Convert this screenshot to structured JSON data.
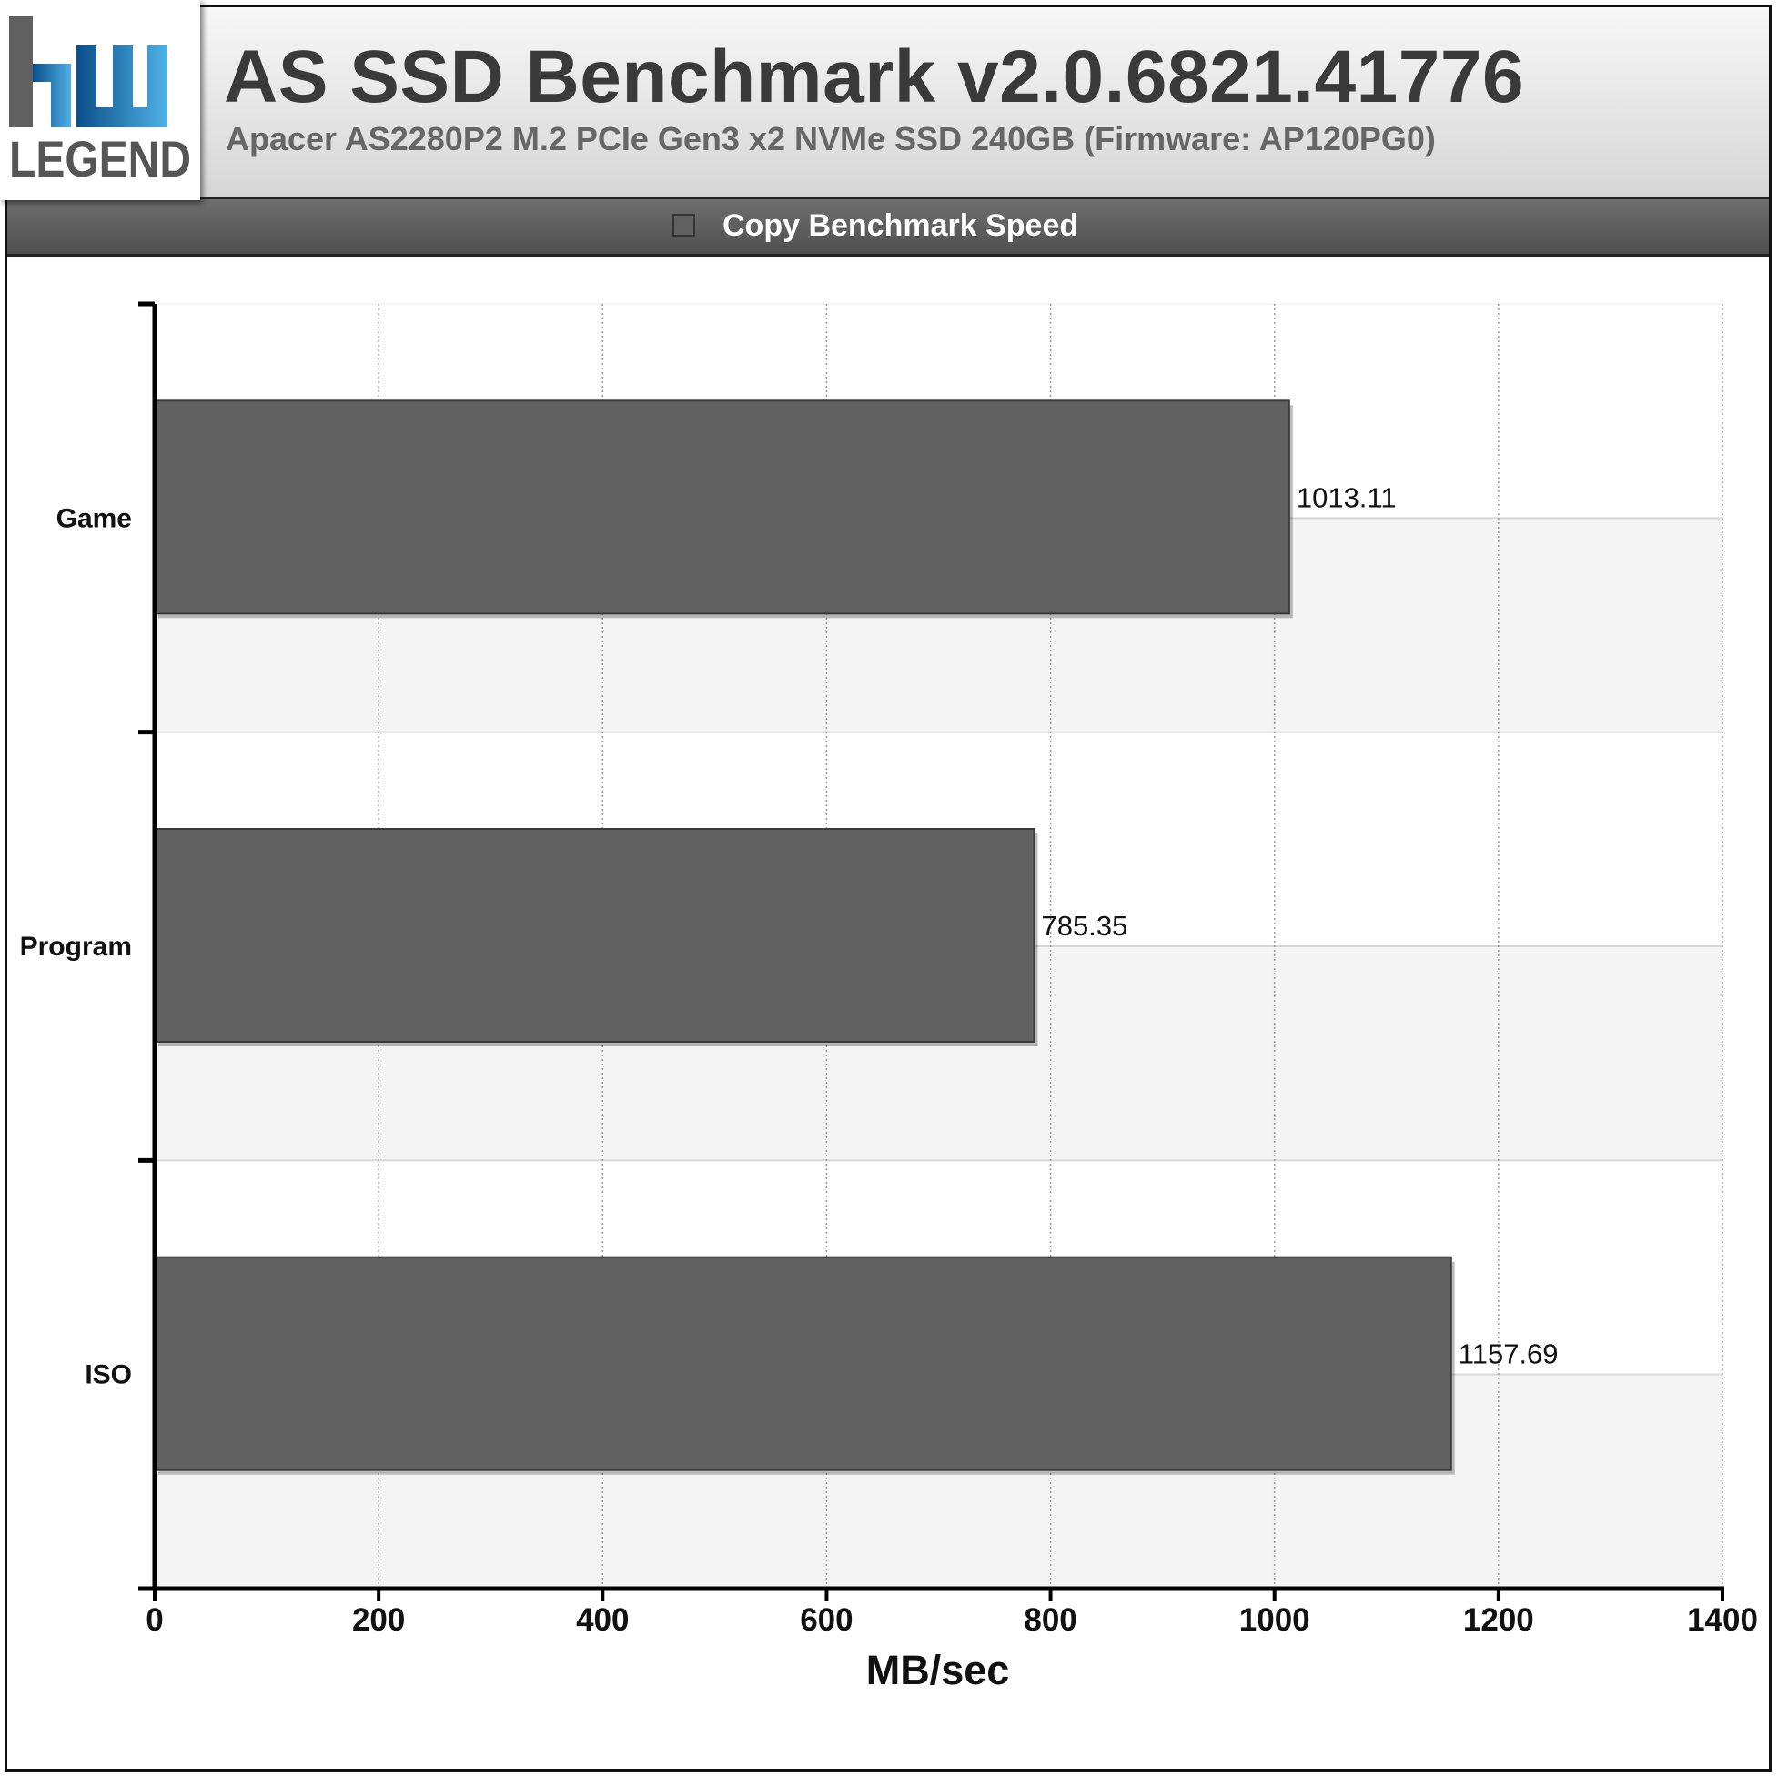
{
  "header": {
    "logo_text": "LEGEND",
    "title": "AS SSD Benchmark v2.0.6821.41776",
    "subtitle": "Apacer AS2280P2 M.2 PCIe Gen3 x2 NVMe SSD 240GB (Firmware: AP120PG0)"
  },
  "legend": {
    "label": "Copy Benchmark Speed",
    "color": "#616161"
  },
  "chart_data": {
    "type": "bar",
    "orientation": "horizontal",
    "categories": [
      "Game",
      "Program",
      "ISO"
    ],
    "series": [
      {
        "name": "Copy Benchmark Speed",
        "values": [
          1013.11,
          785.35,
          1157.69
        ],
        "color": "#616161"
      }
    ],
    "value_labels": [
      "1013.11",
      "785.35",
      "1157.69"
    ],
    "xlabel": "MB/sec",
    "ylabel": "",
    "xlim": [
      0,
      1400
    ],
    "xticks": [
      0,
      200,
      400,
      600,
      800,
      1000,
      1200,
      1400
    ],
    "grid": true,
    "legend_position": "top"
  }
}
